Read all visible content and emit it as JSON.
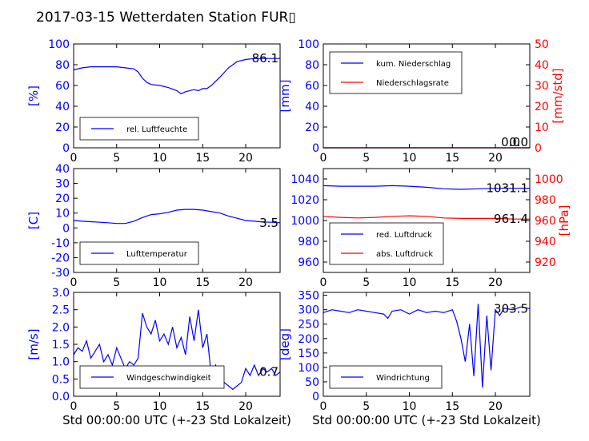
{
  "title": "2017-03-15 Wetterdaten Station FUR▯",
  "xlabel": "Std 00:00:00 UTC (+-23 Std Lokalzeit)",
  "colors": {
    "primary": "#0000ff",
    "secondary": "#ff0000",
    "axis": "#000000"
  },
  "chart_data": [
    {
      "type": "line",
      "ylabel": "[%]",
      "xlim": [
        0,
        24
      ],
      "ylim": [
        0,
        100
      ],
      "xticks": [
        0,
        5,
        10,
        15,
        20
      ],
      "yticks": [
        0,
        20,
        40,
        60,
        80,
        100
      ],
      "legend": [
        "rel. Luftfeuchte"
      ],
      "legend_loc": "lower-left",
      "annotations": [
        "86.1"
      ],
      "series": [
        {
          "name": "rel. Luftfeuchte",
          "axis": "left",
          "x": [
            0,
            1,
            2,
            3,
            4,
            5,
            6,
            7,
            7.5,
            8,
            8.5,
            9,
            10,
            11,
            12,
            12.5,
            13,
            14,
            14.5,
            15,
            15.5,
            16,
            17,
            18,
            19,
            20,
            21,
            22,
            23,
            24
          ],
          "y": [
            75,
            77,
            78,
            78,
            78,
            78,
            77,
            76,
            73,
            67,
            63,
            61,
            60,
            58,
            55,
            52,
            54,
            56,
            55,
            57,
            57,
            60,
            68,
            77,
            83,
            85,
            86,
            86,
            86,
            86
          ]
        }
      ]
    },
    {
      "type": "line",
      "ylabel": "[mm]",
      "ylabel_right": "[mm/std]",
      "xlim": [
        0,
        24
      ],
      "ylim": [
        0,
        100
      ],
      "ylim_right": [
        0,
        50
      ],
      "xticks": [
        0,
        5,
        10,
        15,
        20
      ],
      "yticks": [
        0,
        20,
        40,
        60,
        80,
        100
      ],
      "yticks_right": [
        0,
        10,
        20,
        30,
        40,
        50
      ],
      "legend": [
        "kum. Niederschlag",
        "Niederschlagsrate"
      ],
      "legend_loc": "upper-left",
      "annotations": [
        "0.0",
        "0.0"
      ],
      "series": [
        {
          "name": "kum. Niederschlag",
          "axis": "left",
          "x": [
            0,
            24
          ],
          "y": [
            0,
            0
          ]
        },
        {
          "name": "Niederschlagsrate",
          "axis": "right",
          "x": [
            0,
            24
          ],
          "y": [
            0,
            0
          ]
        }
      ]
    },
    {
      "type": "line",
      "ylabel": "[C]",
      "xlim": [
        0,
        24
      ],
      "ylim": [
        -30,
        40
      ],
      "xticks": [
        0,
        5,
        10,
        15,
        20
      ],
      "yticks": [
        -30,
        -20,
        -10,
        0,
        10,
        20,
        30,
        40
      ],
      "legend": [
        "Lufttemperatur"
      ],
      "legend_loc": "lower-left",
      "annotations": [
        "3.5"
      ],
      "series": [
        {
          "name": "Lufttemperatur",
          "axis": "left",
          "x": [
            0,
            1,
            2,
            3,
            4,
            5,
            6,
            7,
            8,
            9,
            10,
            11,
            12,
            13,
            14,
            15,
            16,
            17,
            18,
            19,
            20,
            21,
            22,
            23,
            24
          ],
          "y": [
            5,
            4.5,
            4.2,
            3.8,
            3.5,
            3,
            3,
            4.5,
            7,
            9,
            9.5,
            10.5,
            12,
            12.5,
            12.5,
            12,
            11,
            10,
            8,
            6.5,
            5,
            4.5,
            4,
            3.8,
            3.5
          ]
        }
      ]
    },
    {
      "type": "line",
      "ylabel": "[hPa]",
      "xlim": [
        0,
        24
      ],
      "ylim": [
        950,
        1050
      ],
      "ylim_right": [
        910,
        1010
      ],
      "xticks": [
        0,
        5,
        10,
        15,
        20
      ],
      "yticks": [
        960,
        980,
        1000,
        1020,
        1040
      ],
      "yticks_right": [
        920,
        940,
        960,
        980,
        1000
      ],
      "legend": [
        "red. Luftdruck",
        "abs. Luftdruck"
      ],
      "legend_loc": "lower-left",
      "annotations": [
        "1031.1",
        "961.4"
      ],
      "series": [
        {
          "name": "red. Luftdruck",
          "axis": "left",
          "x": [
            0,
            2,
            4,
            6,
            8,
            10,
            12,
            14,
            16,
            18,
            20,
            22,
            24
          ],
          "y": [
            1033.5,
            1033,
            1033,
            1033,
            1033.5,
            1033,
            1032,
            1030.5,
            1030,
            1030.5,
            1031,
            1031,
            1031.1
          ]
        },
        {
          "name": "abs. Luftdruck",
          "axis": "right",
          "x": [
            0,
            2,
            4,
            6,
            8,
            10,
            12,
            14,
            16,
            18,
            20,
            22,
            24
          ],
          "y": [
            964,
            963,
            962.5,
            963,
            964,
            964.5,
            964,
            962.5,
            962,
            962,
            962,
            961.5,
            961.4
          ]
        }
      ]
    },
    {
      "type": "line",
      "ylabel": "[m/s]",
      "xlim": [
        0,
        24
      ],
      "ylim": [
        0,
        3
      ],
      "xticks": [
        0,
        5,
        10,
        15,
        20
      ],
      "yticks": [
        0,
        0.5,
        1,
        1.5,
        2,
        2.5,
        3
      ],
      "ytick_labels": [
        "0.0",
        "0.5",
        "1.0",
        "1.5",
        "2.0",
        "2.5",
        "3.0"
      ],
      "legend": [
        "Windgeschwindigkeit"
      ],
      "legend_loc": "lower-left",
      "annotations": [
        "0.7"
      ],
      "series": [
        {
          "name": "Windgeschwindigkeit",
          "axis": "left",
          "x": [
            0,
            0.5,
            1,
            1.5,
            2,
            2.5,
            3,
            3.5,
            4,
            4.5,
            5,
            5.5,
            6,
            6.5,
            7,
            7.5,
            8,
            8.5,
            9,
            9.5,
            10,
            10.5,
            11,
            11.5,
            12,
            12.5,
            13,
            13.5,
            14,
            14.5,
            15,
            15.5,
            16,
            16.5,
            17,
            17.5,
            18,
            18.5,
            19,
            19.5,
            20,
            20.5,
            21,
            21.5,
            22,
            22.5,
            23,
            23.5,
            24
          ],
          "y": [
            1.2,
            1.4,
            1.3,
            1.6,
            1.1,
            1.3,
            1.5,
            1.0,
            1.2,
            0.9,
            1.4,
            1.1,
            0.8,
            1.0,
            0.9,
            1.1,
            2.4,
            2.0,
            1.8,
            2.2,
            1.6,
            1.8,
            1.5,
            2.0,
            1.4,
            1.7,
            1.2,
            2.3,
            1.6,
            2.5,
            1.4,
            1.8,
            0.6,
            0.9,
            0.5,
            0.4,
            0.3,
            0.2,
            0.3,
            0.4,
            0.8,
            0.6,
            0.9,
            0.6,
            0.8,
            0.7,
            0.8,
            0.6,
            0.7
          ]
        }
      ]
    },
    {
      "type": "line",
      "ylabel": "[deg]",
      "xlim": [
        0,
        24
      ],
      "ylim": [
        0,
        360
      ],
      "xticks": [
        0,
        5,
        10,
        15,
        20
      ],
      "yticks": [
        0,
        50,
        100,
        150,
        200,
        250,
        300,
        350
      ],
      "legend": [
        "Windrichtung"
      ],
      "legend_loc": "lower-left",
      "annotations": [
        "303.5"
      ],
      "series": [
        {
          "name": "Windrichtung",
          "axis": "left",
          "x": [
            0,
            1,
            2,
            3,
            4,
            5,
            6,
            7,
            7.5,
            8,
            9,
            10,
            11,
            12,
            13,
            14,
            15,
            15.5,
            16,
            16.5,
            17,
            17.5,
            18,
            18.5,
            19,
            19.5,
            20,
            20.5,
            21,
            22,
            23,
            24
          ],
          "y": [
            290,
            300,
            295,
            290,
            300,
            295,
            290,
            285,
            270,
            295,
            300,
            285,
            300,
            290,
            295,
            290,
            300,
            260,
            200,
            120,
            250,
            70,
            320,
            30,
            280,
            90,
            300,
            280,
            305,
            300,
            310,
            303.5
          ]
        }
      ]
    }
  ]
}
